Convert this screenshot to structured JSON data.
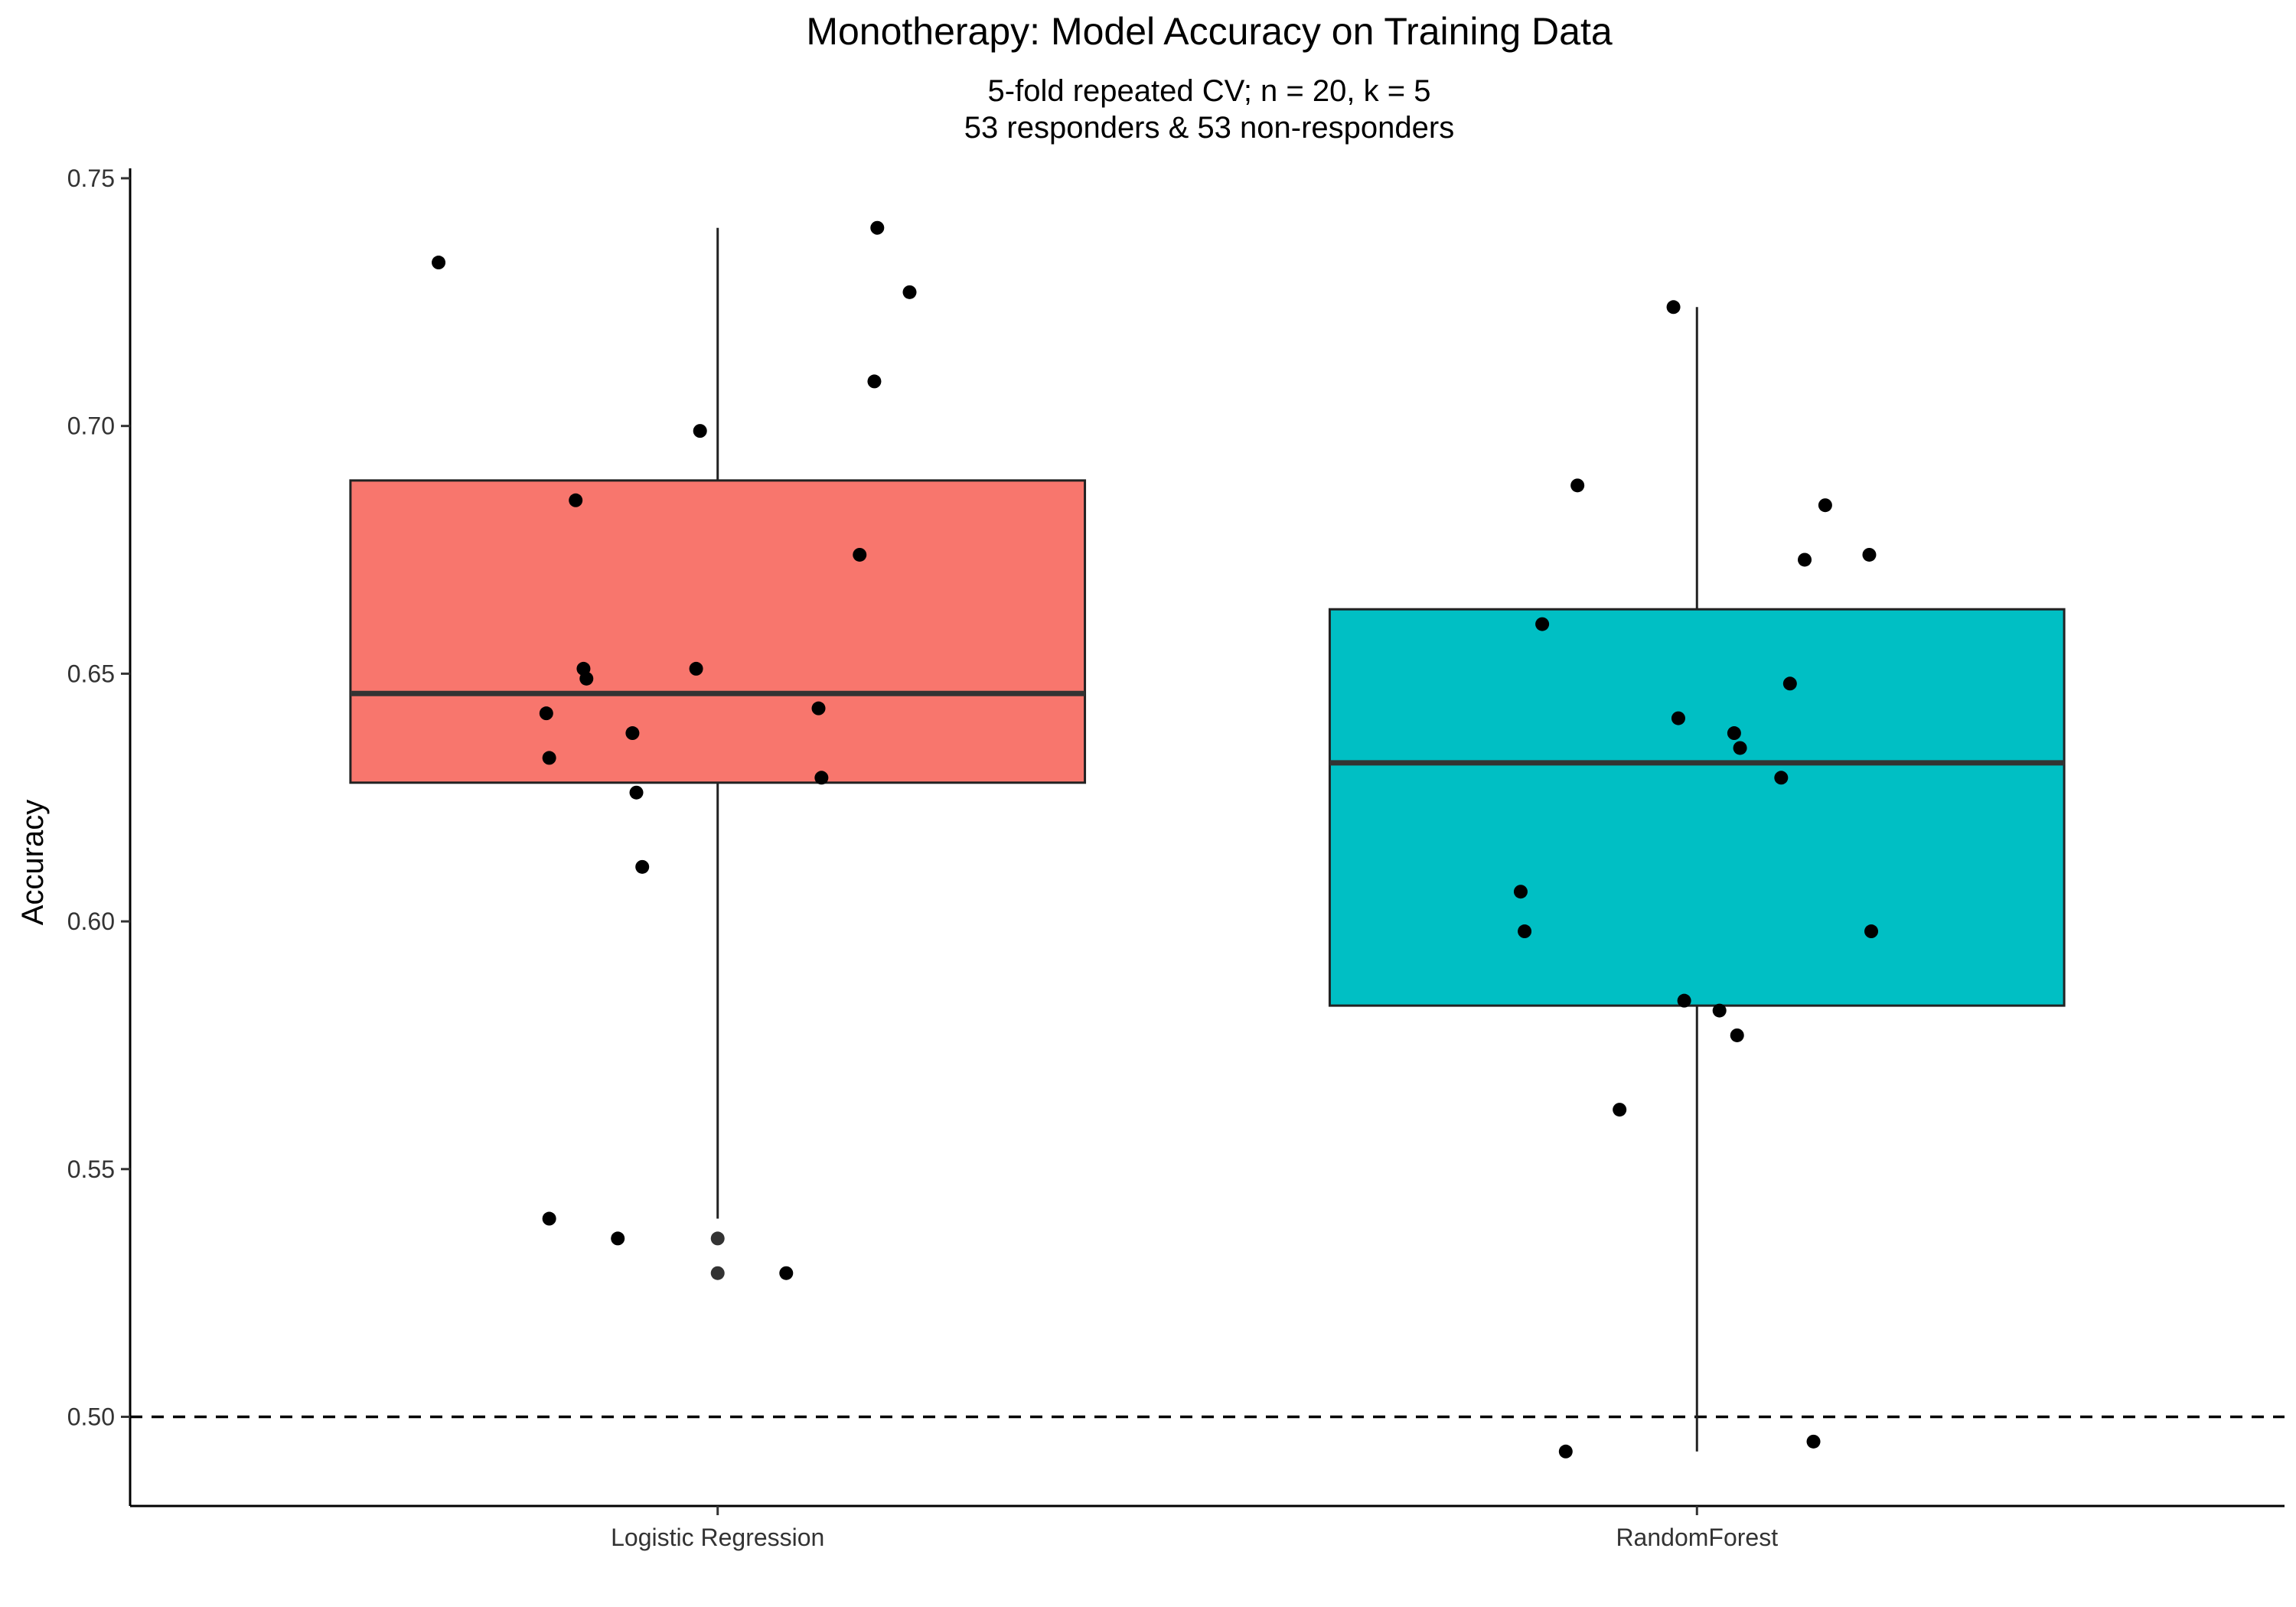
{
  "chart_data": {
    "type": "boxplot",
    "title": "Monotherapy: Model Accuracy on Training Data",
    "subtitle_lines": [
      "5-fold repeated CV; n = 20, k = 5",
      "53 responders & 53 non-responders"
    ],
    "xlabel": "",
    "ylabel": "Accuracy",
    "ylim": [
      0.482,
      0.752
    ],
    "yticks": [
      0.5,
      0.55,
      0.6,
      0.65,
      0.7,
      0.75
    ],
    "ytick_labels": [
      "0.50",
      "0.55",
      "0.60",
      "0.65",
      "0.70",
      "0.75"
    ],
    "reference_line": {
      "y": 0.5,
      "style": "dashed",
      "color": "#000000"
    },
    "grid": false,
    "legend": "none",
    "categories": [
      "Logistic Regression",
      "RandomForest"
    ],
    "series": [
      {
        "category": "Logistic Regression",
        "color": "#F8766D",
        "box": {
          "whisker_low": 0.54,
          "q1": 0.628,
          "median": 0.646,
          "q3": 0.689,
          "whisker_high": 0.74
        },
        "points": [
          {
            "x": -0.285,
            "y": 0.733
          },
          {
            "x": 0.163,
            "y": 0.74
          },
          {
            "x": 0.196,
            "y": 0.727
          },
          {
            "x": 0.16,
            "y": 0.709
          },
          {
            "x": -0.018,
            "y": 0.699
          },
          {
            "x": -0.145,
            "y": 0.685
          },
          {
            "x": 0.145,
            "y": 0.674
          },
          {
            "x": -0.137,
            "y": 0.651
          },
          {
            "x": -0.022,
            "y": 0.651
          },
          {
            "x": -0.134,
            "y": 0.649
          },
          {
            "x": 0.103,
            "y": 0.643
          },
          {
            "x": -0.175,
            "y": 0.642
          },
          {
            "x": -0.087,
            "y": 0.638
          },
          {
            "x": -0.172,
            "y": 0.633
          },
          {
            "x": 0.106,
            "y": 0.629
          },
          {
            "x": -0.083,
            "y": 0.626
          },
          {
            "x": -0.077,
            "y": 0.611
          },
          {
            "x": -0.172,
            "y": 0.54
          },
          {
            "x": -0.102,
            "y": 0.536
          },
          {
            "x": 0.0,
            "y": 0.536,
            "outlier": true
          },
          {
            "x": 0.0,
            "y": 0.529,
            "outlier": true
          },
          {
            "x": 0.07,
            "y": 0.529
          }
        ]
      },
      {
        "category": "RandomForest",
        "color": "#00BFC4",
        "box": {
          "whisker_low": 0.493,
          "q1": 0.583,
          "median": 0.632,
          "q3": 0.663,
          "whisker_high": 0.724
        },
        "points": [
          {
            "x": -0.024,
            "y": 0.724
          },
          {
            "x": -0.122,
            "y": 0.688
          },
          {
            "x": 0.131,
            "y": 0.684
          },
          {
            "x": 0.176,
            "y": 0.674
          },
          {
            "x": 0.11,
            "y": 0.673
          },
          {
            "x": -0.158,
            "y": 0.66
          },
          {
            "x": 0.095,
            "y": 0.648
          },
          {
            "x": -0.019,
            "y": 0.641
          },
          {
            "x": 0.038,
            "y": 0.638
          },
          {
            "x": 0.044,
            "y": 0.635
          },
          {
            "x": 0.086,
            "y": 0.629
          },
          {
            "x": -0.18,
            "y": 0.606
          },
          {
            "x": -0.176,
            "y": 0.598
          },
          {
            "x": 0.178,
            "y": 0.598
          },
          {
            "x": -0.013,
            "y": 0.584
          },
          {
            "x": 0.023,
            "y": 0.582
          },
          {
            "x": 0.041,
            "y": 0.577
          },
          {
            "x": -0.079,
            "y": 0.562
          },
          {
            "x": 0.119,
            "y": 0.495
          },
          {
            "x": -0.134,
            "y": 0.493
          }
        ]
      }
    ]
  }
}
